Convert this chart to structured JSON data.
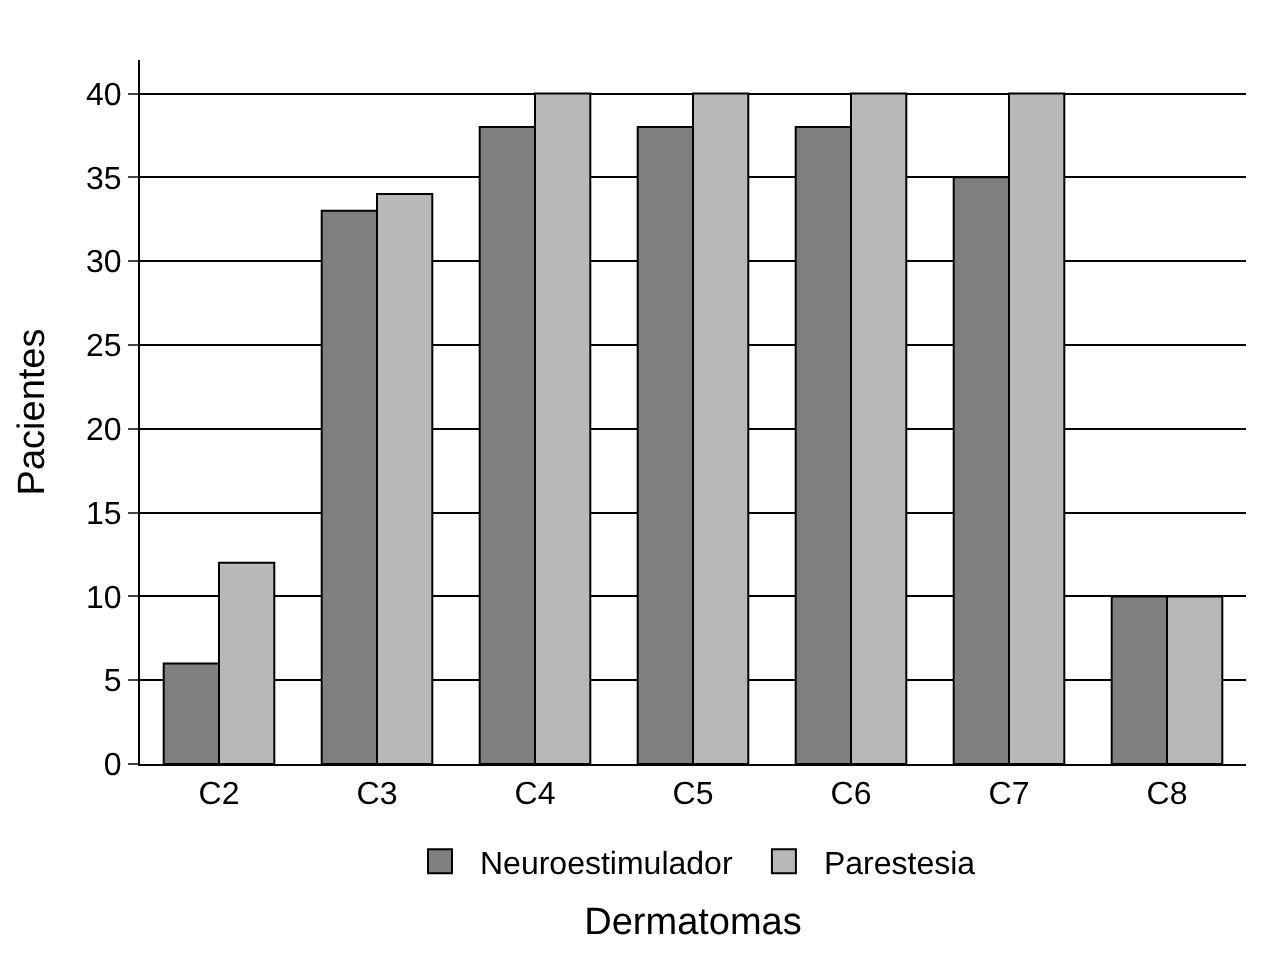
{
  "chart_data": {
    "type": "bar",
    "xlabel": "Dermatomas",
    "ylabel": "Pacientes",
    "categories": [
      "C2",
      "C3",
      "C4",
      "C5",
      "C6",
      "C7",
      "C8"
    ],
    "series": [
      {
        "name": "Neuroestimulador",
        "color": "#7f7f7f",
        "values": [
          6,
          33,
          38,
          38,
          38,
          35,
          10
        ]
      },
      {
        "name": "Parestesia",
        "color": "#b8b8b8",
        "values": [
          12,
          34,
          40,
          40,
          40,
          40,
          10
        ]
      }
    ],
    "ylim": [
      0,
      42
    ],
    "yticks": [
      0,
      5,
      10,
      15,
      20,
      25,
      30,
      35,
      40
    ],
    "grid": "y",
    "legend": "bottom"
  }
}
